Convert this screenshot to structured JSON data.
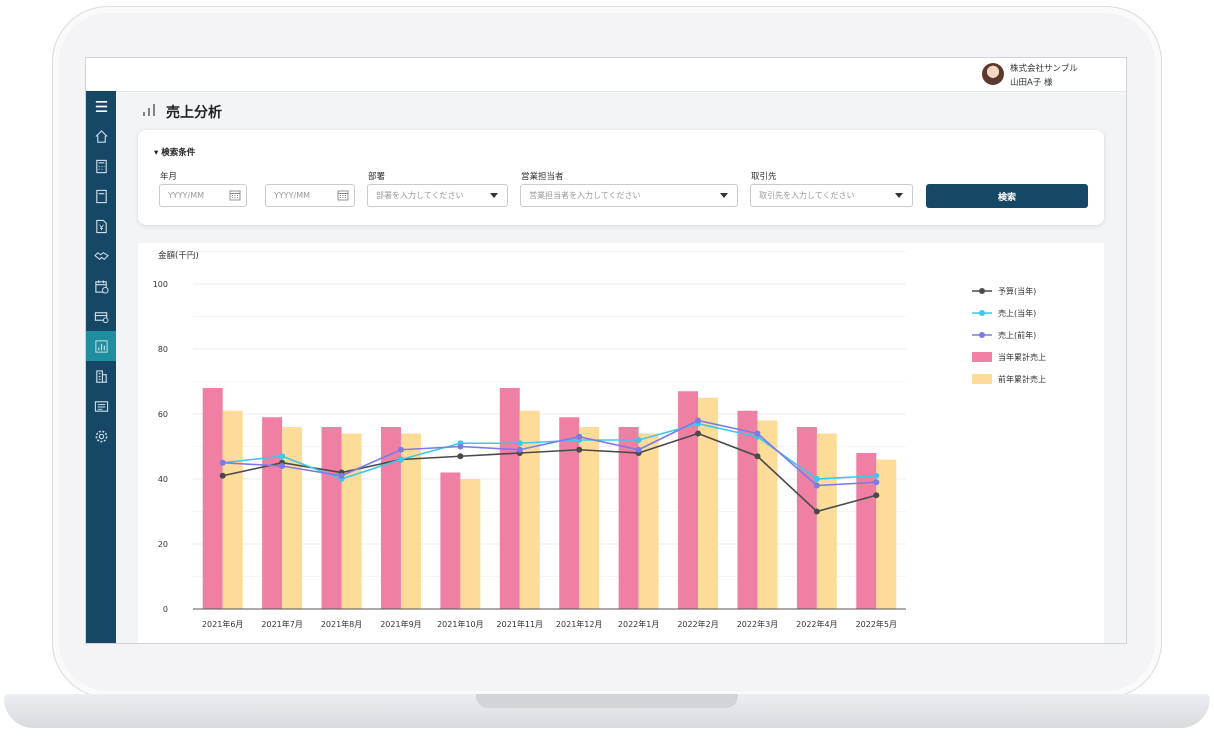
{
  "header": {
    "company": "株式会社サンプル",
    "user": "山田A子 様"
  },
  "page": {
    "title": "売上分析"
  },
  "search": {
    "title": "検索条件",
    "period_label": "年月",
    "period_from_placeholder": "YYYY/MM",
    "period_to_placeholder": "YYYY/MM",
    "range_sep": "〜",
    "department_label": "部署",
    "department_placeholder": "部署を入力してください",
    "sales_rep_label": "営業担当者",
    "sales_rep_placeholder": "営業担当者を入力してください",
    "client_label": "取引先",
    "client_placeholder": "取引先を入力してください",
    "button": "検索"
  },
  "sidebar": {
    "items": [
      "menu-icon",
      "home-icon",
      "calculator-icon",
      "document-icon",
      "invoice-yen-icon",
      "handshake-icon",
      "calendar-clock-icon",
      "payment-card-icon",
      "bar-chart-icon",
      "building-icon",
      "list-icon",
      "gear-icon"
    ],
    "active_index": 8
  },
  "colors": {
    "primary": "#164766",
    "active": "#1f8fa0",
    "budget": "#4a4a4a",
    "sales_current": "#3fc7e8",
    "sales_previous": "#7b7be8",
    "cumulative_current": "#ef7fa3",
    "cumulative_previous": "#fddc9a"
  },
  "chart_data": {
    "type": "bar",
    "ylabel": "金額(千円)",
    "ylim": [
      0,
      100
    ],
    "yticks": [
      0,
      20,
      40,
      60,
      80,
      100
    ],
    "grid": true,
    "legend_position": "right",
    "categories": [
      "2021年6月",
      "2021年7月",
      "2021年8月",
      "2021年9月",
      "2021年10月",
      "2021年11月",
      "2021年12月",
      "2022年1月",
      "2022年2月",
      "2022年3月",
      "2022年4月",
      "2022年5月"
    ],
    "series": [
      {
        "name": "予算(当年)",
        "kind": "line",
        "color": "#4a4a4a",
        "values": [
          41,
          45,
          42,
          46,
          47,
          48,
          49,
          48,
          54,
          47,
          30,
          35
        ]
      },
      {
        "name": "売上(当年)",
        "kind": "line",
        "color": "#3fc7e8",
        "values": [
          45,
          47,
          40,
          46,
          51,
          51,
          52,
          52,
          57,
          53,
          40,
          41
        ]
      },
      {
        "name": "売上(前年)",
        "kind": "line",
        "color": "#7b7be8",
        "values": [
          45,
          44,
          41,
          49,
          50,
          49,
          53,
          49,
          58,
          54,
          38,
          39
        ]
      },
      {
        "name": "当年累計売上",
        "kind": "bar",
        "color": "#ef7fa3",
        "values": [
          68,
          59,
          56,
          56,
          42,
          68,
          59,
          56,
          67,
          61,
          56,
          48
        ]
      },
      {
        "name": "前年累計売上",
        "kind": "bar",
        "color": "#fddc9a",
        "values": [
          61,
          56,
          54,
          54,
          40,
          61,
          56,
          54,
          65,
          58,
          54,
          46
        ]
      }
    ]
  }
}
